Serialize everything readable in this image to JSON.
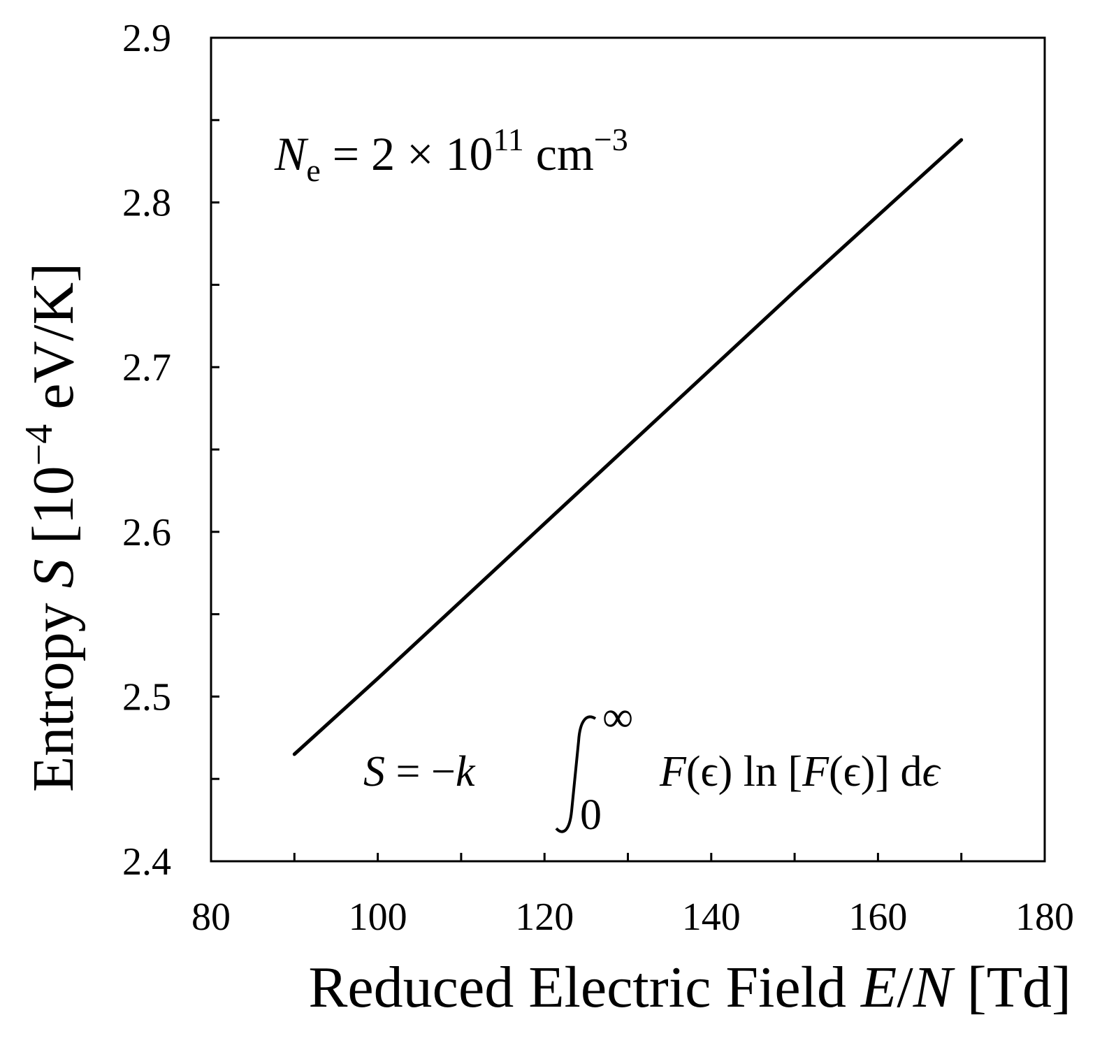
{
  "chart_data": {
    "type": "line",
    "title": "",
    "xlabel": {
      "prefix": "Reduced Electric Field ",
      "italic": "E",
      "slash": "/",
      "italic2": "N",
      "suffix": " [Td]"
    },
    "ylabel": {
      "prefix": "Entropy ",
      "italic": "S",
      "unit_open": " [10",
      "unit_exp": "−4",
      "unit_close": " eV/K]"
    },
    "xlim": [
      80,
      180
    ],
    "ylim": [
      2.4,
      2.9
    ],
    "x_major_ticks": [
      80,
      100,
      120,
      140,
      160,
      180
    ],
    "x_tick_labels": [
      "80",
      "100",
      "120",
      "140",
      "160",
      "180"
    ],
    "x_minor_step": 10,
    "y_major_ticks": [
      2.4,
      2.5,
      2.6,
      2.7,
      2.8,
      2.9
    ],
    "y_tick_labels": [
      "2.4",
      "2.5",
      "2.6",
      "2.7",
      "2.8",
      "2.9"
    ],
    "y_minor_step": 0.05,
    "grid": false,
    "series": [
      {
        "x": [
          90,
          100,
          110,
          120,
          130,
          140,
          150,
          160,
          170
        ],
        "y": [
          2.465,
          2.511,
          2.558,
          2.605,
          2.652,
          2.699,
          2.746,
          2.792,
          2.838
        ]
      }
    ],
    "annotations": {
      "density": {
        "var": "N",
        "sub": "e",
        "text": " = 2  × 10",
        "exp": "11",
        "unit": " cm",
        "unit_exp": "−3"
      },
      "formula": {
        "lhs": "S",
        "eq": " = −",
        "k": "k",
        "upper": "∞",
        "lower": "0",
        "F": "F",
        "arg": "(ϵ) ln [",
        "F2": "F",
        "arg2": "(ϵ)] d",
        "eps": "ϵ"
      }
    }
  }
}
